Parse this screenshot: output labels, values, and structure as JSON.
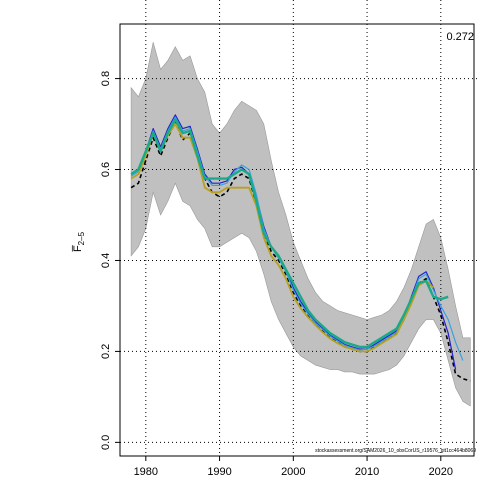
{
  "chart_data": {
    "type": "line",
    "title": "",
    "xlabel": "",
    "ylabel": "F̅",
    "ylabel_subscript": "2–5",
    "xlim": [
      1976.5,
      2024.5
    ],
    "ylim": [
      -0.03,
      0.92
    ],
    "x_ticks": [
      1980,
      1990,
      2000,
      2010,
      2020
    ],
    "x_tick_labels": [
      "1980",
      "1990",
      "2000",
      "2010",
      "2020"
    ],
    "y_ticks": [
      0.0,
      0.2,
      0.4,
      0.6,
      0.8
    ],
    "y_tick_labels": [
      "0.0",
      "0.2",
      "0.4",
      "0.6",
      "0.8"
    ],
    "grid": true,
    "corner_label": "0.272",
    "footer_text": "stockassessment.org/SAM2026_10_obsCorUS_r19576_git1cc464b8069",
    "band": {
      "x": [
        1978,
        1979,
        1980,
        1981,
        1982,
        1983,
        1984,
        1985,
        1986,
        1987,
        1988,
        1989,
        1990,
        1991,
        1992,
        1993,
        1994,
        1995,
        1996,
        1997,
        1998,
        1999,
        2000,
        2001,
        2002,
        2003,
        2004,
        2005,
        2006,
        2007,
        2008,
        2009,
        2010,
        2011,
        2012,
        2013,
        2014,
        2015,
        2016,
        2017,
        2018,
        2019,
        2020,
        2021,
        2022,
        2023,
        2024
      ],
      "upper": [
        0.78,
        0.76,
        0.8,
        0.88,
        0.82,
        0.84,
        0.87,
        0.84,
        0.85,
        0.8,
        0.77,
        0.7,
        0.68,
        0.7,
        0.73,
        0.75,
        0.74,
        0.73,
        0.7,
        0.62,
        0.55,
        0.5,
        0.44,
        0.4,
        0.36,
        0.33,
        0.31,
        0.3,
        0.29,
        0.285,
        0.28,
        0.275,
        0.27,
        0.275,
        0.28,
        0.29,
        0.31,
        0.34,
        0.38,
        0.43,
        0.48,
        0.49,
        0.45,
        0.38,
        0.3,
        0.23,
        0.23
      ],
      "lower": [
        0.41,
        0.43,
        0.47,
        0.55,
        0.5,
        0.53,
        0.57,
        0.53,
        0.52,
        0.49,
        0.47,
        0.43,
        0.43,
        0.44,
        0.45,
        0.46,
        0.45,
        0.42,
        0.37,
        0.31,
        0.27,
        0.24,
        0.21,
        0.19,
        0.18,
        0.17,
        0.165,
        0.16,
        0.16,
        0.155,
        0.155,
        0.15,
        0.15,
        0.15,
        0.155,
        0.16,
        0.17,
        0.19,
        0.22,
        0.25,
        0.27,
        0.27,
        0.24,
        0.18,
        0.12,
        0.09,
        0.08
      ]
    },
    "series": [
      {
        "color": "#000000",
        "dash": "4,3",
        "width": 1.6,
        "x": [
          1978,
          1979,
          1980,
          1981,
          1982,
          1983,
          1984,
          1985,
          1986,
          1987,
          1988,
          1989,
          1990,
          1991,
          1992,
          1993,
          1994,
          1995,
          1996,
          1997,
          1998,
          1999,
          2000,
          2001,
          2002,
          2003,
          2004,
          2005,
          2006,
          2007,
          2008,
          2009,
          2010,
          2011,
          2012,
          2013,
          2014,
          2015,
          2016,
          2017,
          2018,
          2019,
          2020,
          2021,
          2022,
          2023,
          2024
        ],
        "y": [
          0.56,
          0.57,
          0.62,
          0.67,
          0.63,
          0.67,
          0.705,
          0.665,
          0.68,
          0.63,
          0.58,
          0.55,
          0.54,
          0.55,
          0.58,
          0.59,
          0.58,
          0.525,
          0.46,
          0.42,
          0.4,
          0.37,
          0.33,
          0.3,
          0.28,
          0.26,
          0.245,
          0.23,
          0.22,
          0.21,
          0.205,
          0.2,
          0.2,
          0.21,
          0.22,
          0.23,
          0.24,
          0.27,
          0.31,
          0.35,
          0.36,
          0.32,
          0.28,
          0.22,
          0.15,
          0.14,
          0.135
        ]
      },
      {
        "color": "#2222cc",
        "dash": "",
        "width": 1.2,
        "x": [
          1978,
          1979,
          1980,
          1981,
          1982,
          1983,
          1984,
          1985,
          1986,
          1987,
          1988,
          1989,
          1990,
          1991,
          1992,
          1993,
          1994,
          1995,
          1996,
          1997,
          1998,
          1999,
          2000,
          2001,
          2002,
          2003,
          2004,
          2005,
          2006,
          2007,
          2008,
          2009,
          2010,
          2011,
          2012,
          2013,
          2014,
          2015,
          2016,
          2017,
          2018,
          2019,
          2020,
          2021,
          2022
        ],
        "y": [
          0.59,
          0.6,
          0.64,
          0.69,
          0.65,
          0.69,
          0.72,
          0.69,
          0.695,
          0.645,
          0.59,
          0.57,
          0.57,
          0.575,
          0.6,
          0.605,
          0.59,
          0.54,
          0.475,
          0.43,
          0.41,
          0.38,
          0.34,
          0.31,
          0.285,
          0.265,
          0.25,
          0.235,
          0.225,
          0.215,
          0.21,
          0.205,
          0.205,
          0.215,
          0.225,
          0.235,
          0.245,
          0.275,
          0.32,
          0.365,
          0.375,
          0.34,
          0.29,
          0.24,
          0.16
        ]
      },
      {
        "color": "#3aa0e0",
        "dash": "",
        "width": 1.2,
        "x": [
          1978,
          1979,
          1980,
          1981,
          1982,
          1983,
          1984,
          1985,
          1986,
          1987,
          1988,
          1989,
          1990,
          1991,
          1992,
          1993,
          1994,
          1995,
          1996,
          1997,
          1998,
          1999,
          2000,
          2001,
          2002,
          2003,
          2004,
          2005,
          2006,
          2007,
          2008,
          2009,
          2010,
          2011,
          2012,
          2013,
          2014,
          2015,
          2016,
          2017,
          2018,
          2019,
          2020,
          2021,
          2022,
          2023
        ],
        "y": [
          0.585,
          0.595,
          0.635,
          0.685,
          0.645,
          0.685,
          0.715,
          0.685,
          0.69,
          0.64,
          0.585,
          0.565,
          0.565,
          0.57,
          0.595,
          0.61,
          0.6,
          0.545,
          0.47,
          0.43,
          0.405,
          0.375,
          0.335,
          0.305,
          0.282,
          0.262,
          0.248,
          0.233,
          0.223,
          0.213,
          0.208,
          0.203,
          0.205,
          0.212,
          0.222,
          0.232,
          0.242,
          0.272,
          0.315,
          0.36,
          0.37,
          0.335,
          0.3,
          0.27,
          0.22,
          0.18
        ]
      },
      {
        "color": "#b8a020",
        "dash": "",
        "width": 1.8,
        "x": [
          1978,
          1979,
          1980,
          1981,
          1982,
          1983,
          1984,
          1985,
          1986,
          1987,
          1988,
          1989,
          1990,
          1991,
          1992,
          1993,
          1994,
          1995,
          1996,
          1997,
          1998,
          1999,
          2000,
          2001,
          2002,
          2003,
          2004,
          2005,
          2006,
          2007,
          2008,
          2009,
          2010,
          2011,
          2012,
          2013,
          2014,
          2015,
          2016,
          2017,
          2018,
          2019
        ],
        "y": [
          0.58,
          0.59,
          0.63,
          0.68,
          0.64,
          0.675,
          0.7,
          0.67,
          0.67,
          0.625,
          0.56,
          0.55,
          0.55,
          0.56,
          0.56,
          0.56,
          0.56,
          0.52,
          0.45,
          0.41,
          0.39,
          0.36,
          0.32,
          0.295,
          0.275,
          0.258,
          0.242,
          0.228,
          0.218,
          0.21,
          0.205,
          0.2,
          0.2,
          0.208,
          0.218,
          0.228,
          0.238,
          0.27,
          0.305,
          0.345,
          0.355,
          0.34
        ]
      },
      {
        "color": "#1aaa88",
        "dash": "",
        "width": 2.4,
        "x": [
          1978,
          1979,
          1980,
          1981,
          1982,
          1983,
          1984,
          1985,
          1986,
          1987,
          1988,
          1989,
          1990,
          1991,
          1992,
          1993,
          1994,
          1995,
          1996,
          1997,
          1998,
          1999,
          2000,
          2001,
          2002,
          2003,
          2004,
          2005,
          2006,
          2007,
          2008,
          2009,
          2010,
          2011,
          2012,
          2013,
          2014,
          2015,
          2016,
          2017,
          2018,
          2019,
          2020,
          2021
        ],
        "y": [
          0.59,
          0.6,
          0.64,
          0.68,
          0.64,
          0.68,
          0.71,
          0.68,
          0.685,
          0.63,
          0.58,
          0.58,
          0.58,
          0.58,
          0.59,
          0.6,
          0.59,
          0.53,
          0.46,
          0.43,
          0.41,
          0.38,
          0.35,
          0.32,
          0.29,
          0.27,
          0.255,
          0.24,
          0.23,
          0.22,
          0.215,
          0.21,
          0.21,
          0.22,
          0.23,
          0.24,
          0.25,
          0.28,
          0.315,
          0.35,
          0.355,
          0.32,
          0.315,
          0.32
        ]
      }
    ]
  }
}
